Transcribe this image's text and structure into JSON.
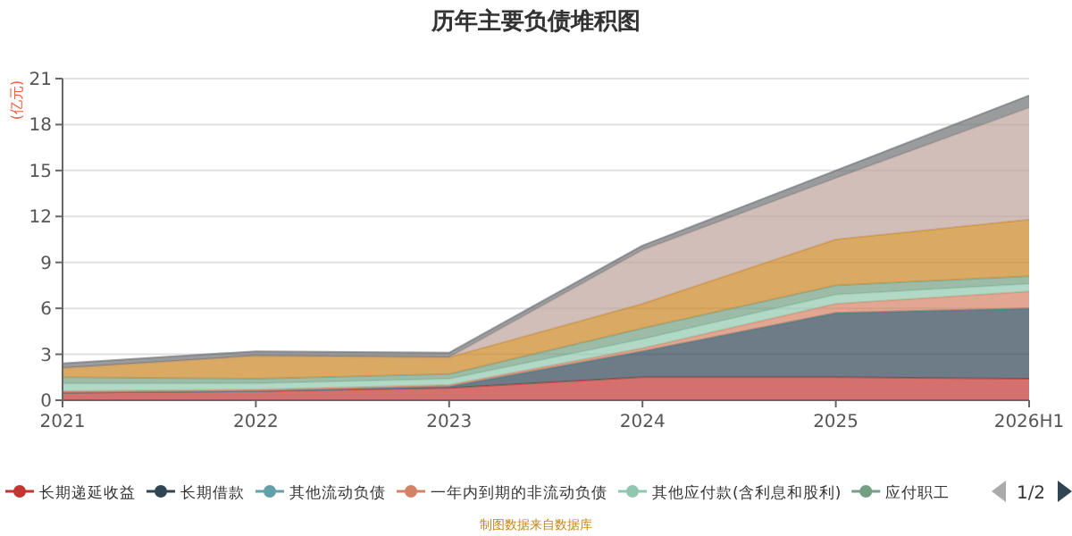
{
  "chart_data": {
    "type": "area",
    "title": "历年主要负债堆积图",
    "ylabel": "(亿元)",
    "categories": [
      "2021",
      "2022",
      "2023",
      "2024",
      "2025",
      "2026H1"
    ],
    "stacked": true,
    "ylim": [
      0,
      21
    ],
    "yticks": [
      0,
      3,
      6,
      9,
      12,
      15,
      18,
      21
    ],
    "grid": "y",
    "legend": "bottom",
    "series": [
      {
        "name": "长期递延收益",
        "color": "#c23531",
        "values": [
          0.5,
          0.6,
          0.8,
          1.5,
          1.5,
          1.4
        ]
      },
      {
        "name": "长期借款",
        "color": "#2f4554",
        "values": [
          0,
          0,
          0.1,
          1.7,
          4.2,
          4.6
        ]
      },
      {
        "name": "其他流动负债",
        "color": "#61a0a8",
        "values": [
          null,
          null,
          null,
          null,
          null,
          null
        ]
      },
      {
        "name": "一年内到期的非流动负债",
        "color": "#d48265",
        "values": [
          0.1,
          0.1,
          0.1,
          0.2,
          0.6,
          1.1
        ]
      },
      {
        "name": "其他应付款(含利息和股利)",
        "color": "#91c7ae",
        "values": [
          0.5,
          0.4,
          0.4,
          0.6,
          0.6,
          0.5
        ]
      },
      {
        "name": "应付职工",
        "color": "#749f83",
        "values": [
          0.4,
          0.3,
          0.3,
          0.7,
          0.6,
          0.5
        ]
      },
      {
        "color": "#ca8622",
        "values": [
          0.6,
          1.5,
          1.1,
          1.6,
          3.0,
          3.7
        ]
      },
      {
        "color": "#bda29a",
        "values": [
          0,
          0,
          0,
          3.5,
          4.0,
          7.3
        ]
      },
      {
        "color": "#6e7074",
        "values": [
          0.3,
          0.3,
          0.3,
          0.3,
          0.5,
          0.8
        ]
      }
    ],
    "annotations": [
      "1/2",
      "制图数据来自数据库"
    ]
  }
}
